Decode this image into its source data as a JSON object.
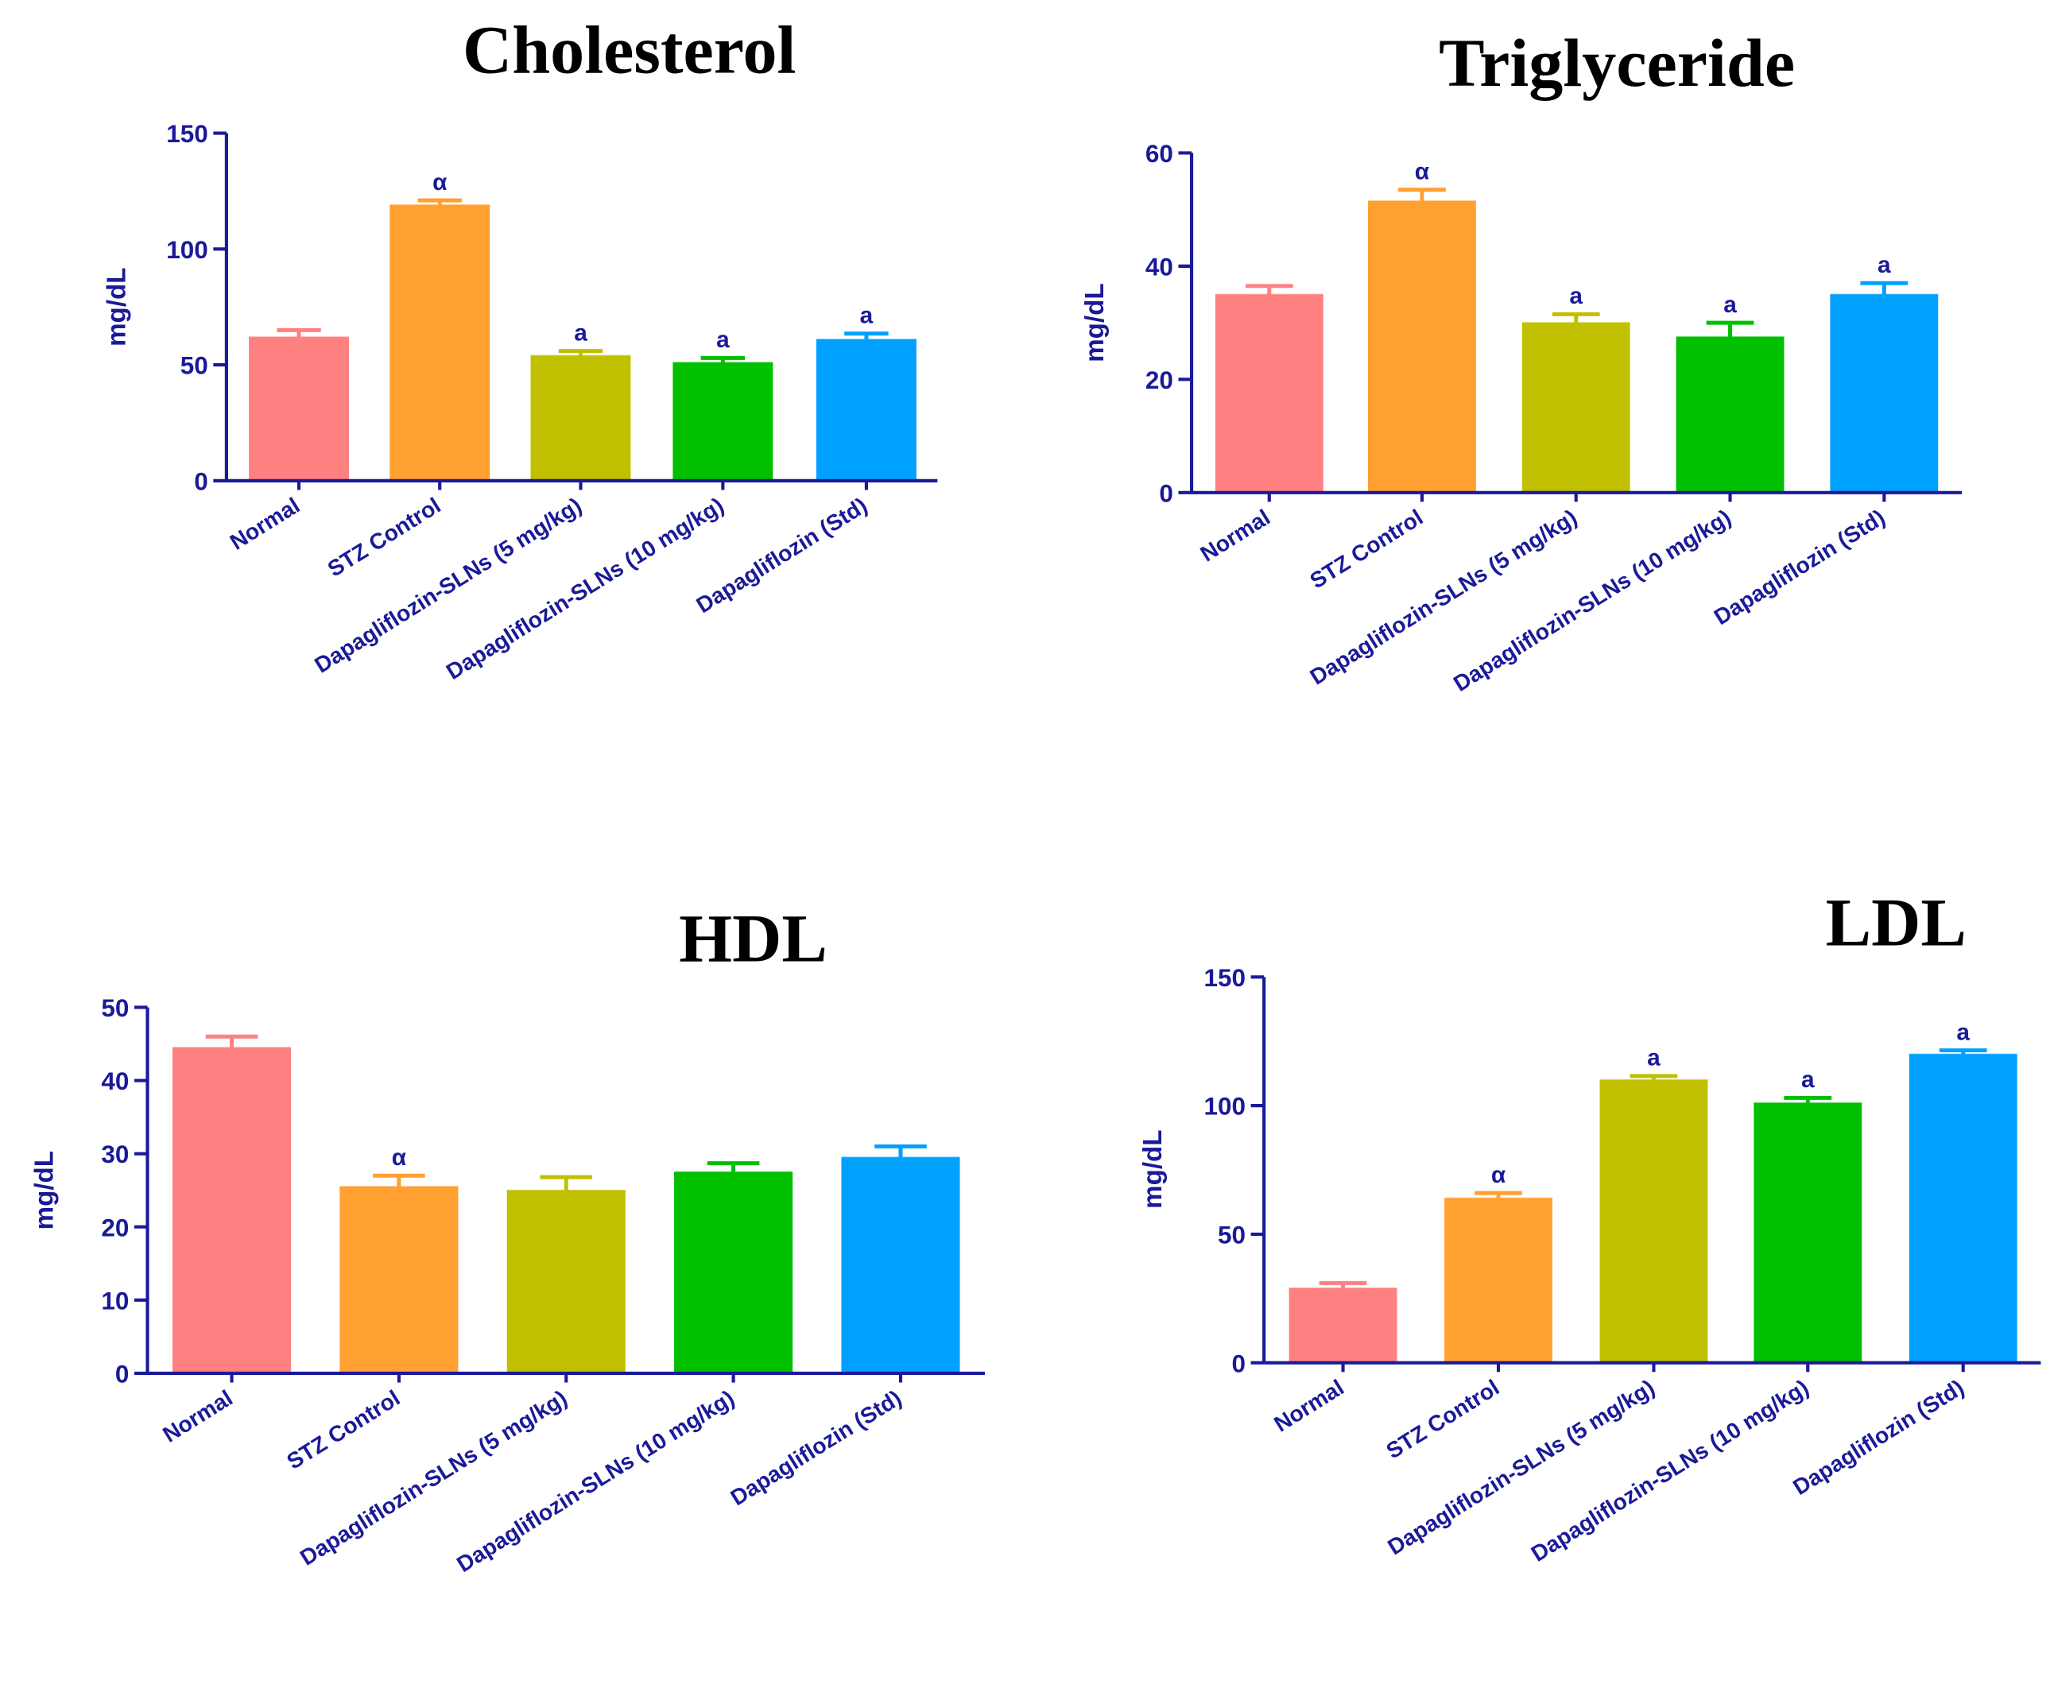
{
  "chart_data": [
    {
      "type": "bar",
      "title": "Cholesterol",
      "ylabel": "mg/dL",
      "ylim": [
        0,
        150
      ],
      "yticks": [
        0,
        50,
        100,
        150
      ],
      "categories": [
        "Normal",
        "STZ Control",
        "Dapagliflozin-SLNs (5 mg/kg)",
        "Dapagliflozin-SLNs (10 mg/kg)",
        "Dapagliflozin (Std)"
      ],
      "values": [
        62,
        119,
        54,
        51,
        61
      ],
      "errors": [
        3,
        2,
        2,
        2,
        2.5
      ],
      "annotations": [
        "",
        "α",
        "a",
        "a",
        "a"
      ]
    },
    {
      "type": "bar",
      "title": "Triglyceride",
      "ylabel": "mg/dL",
      "ylim": [
        0,
        60
      ],
      "yticks": [
        0,
        20,
        40,
        60
      ],
      "categories": [
        "Normal",
        "STZ Control",
        "Dapagliflozin-SLNs (5 mg/kg)",
        "Dapagliflozin-SLNs (10 mg/kg)",
        "Dapagliflozin (Std)"
      ],
      "values": [
        35,
        51.5,
        30,
        27.5,
        35
      ],
      "errors": [
        1.5,
        2,
        1.5,
        2.5,
        2
      ],
      "annotations": [
        "",
        "α",
        "a",
        "a",
        "a"
      ]
    },
    {
      "type": "bar",
      "title": "HDL",
      "ylabel": "mg/dL",
      "ylim": [
        0,
        50
      ],
      "yticks": [
        0,
        10,
        20,
        30,
        40,
        50
      ],
      "categories": [
        "Normal",
        "STZ Control",
        "Dapagliflozin-SLNs (5 mg/kg)",
        "Dapagliflozin-SLNs (10 mg/kg)",
        "Dapagliflozin (Std)"
      ],
      "values": [
        44.5,
        25.5,
        25,
        27.5,
        29.5
      ],
      "errors": [
        1.5,
        1.5,
        1.8,
        1.2,
        1.5
      ],
      "annotations": [
        "",
        "α",
        "",
        "",
        ""
      ]
    },
    {
      "type": "bar",
      "title": "LDL",
      "ylabel": "mg/dL",
      "ylim": [
        0,
        150
      ],
      "yticks": [
        0,
        50,
        100,
        150
      ],
      "categories": [
        "Normal",
        "STZ Control",
        "Dapagliflozin-SLNs (5 mg/kg)",
        "Dapagliflozin-SLNs (10 mg/kg)",
        "Dapagliflozin (Std)"
      ],
      "values": [
        29,
        64,
        110,
        101,
        120
      ],
      "errors": [
        2,
        2,
        1.5,
        2,
        1.5
      ],
      "annotations": [
        "",
        "α",
        "a",
        "a",
        "a"
      ]
    }
  ],
  "colors": {
    "bars": [
      "#FF8080",
      "#FFA030",
      "#C0C000",
      "#00C000",
      "#00A0FF"
    ],
    "axis": "#1a1a99"
  }
}
